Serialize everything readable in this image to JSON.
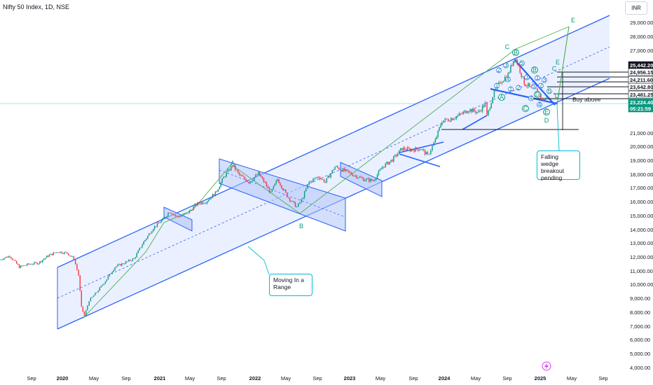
{
  "header": {
    "title": "Nifty 50 Index, 1D, NSE",
    "currency": "INR"
  },
  "chart_data": {
    "type": "line",
    "title": "Nifty 50 Index, 1D, NSE",
    "xlabel": "",
    "ylabel": "",
    "x_ticks": [
      "Sep",
      "2020",
      "May",
      "Sep",
      "2021",
      "May",
      "Sep",
      "2022",
      "May",
      "Sep",
      "2023",
      "May",
      "Sep",
      "2024",
      "May",
      "Sep",
      "2025",
      "May",
      "Sep"
    ],
    "y_ticks": [
      "29,000.00",
      "28,000.00",
      "27,000.00",
      "21,000.00",
      "20,000.00",
      "19,000.00",
      "18,000.00",
      "17,000.00",
      "16,000.00",
      "15,000.00",
      "14,000.00",
      "13,000.00",
      "12,000.00",
      "11,000.00",
      "10,000.00",
      "9,000.00",
      "8,000.00",
      "7,000.00",
      "6,000.00",
      "5,000.00",
      "4,000.00"
    ],
    "ylim": [
      4000,
      29000
    ],
    "price_labels": [
      {
        "text": "25,442.20",
        "style": "black"
      },
      {
        "text": "24,956.15",
        "style": "outline"
      },
      {
        "text": "24,211.60",
        "style": "outline"
      },
      {
        "text": "23,642.80",
        "style": "outline"
      },
      {
        "text": "23,481.25",
        "style": "outline"
      },
      {
        "text": "23,224.40",
        "style": "green"
      },
      {
        "text": "05:21:59",
        "style": "green"
      }
    ],
    "series": [
      {
        "values": [
          [
            2019.33,
            11600
          ],
          [
            2019.45,
            11900
          ],
          [
            2019.55,
            11100
          ],
          [
            2019.65,
            11300
          ],
          [
            2019.75,
            11400
          ],
          [
            2019.85,
            11900
          ],
          [
            2019.95,
            12200
          ],
          [
            2020.05,
            12100
          ],
          [
            2020.12,
            11700
          ],
          [
            2020.17,
            10500
          ],
          [
            2020.2,
            8200
          ],
          [
            2020.23,
            7600
          ],
          [
            2020.28,
            8700
          ],
          [
            2020.36,
            9300
          ],
          [
            2020.45,
            10100
          ],
          [
            2020.55,
            11100
          ],
          [
            2020.65,
            11400
          ],
          [
            2020.75,
            11700
          ],
          [
            2020.85,
            12900
          ],
          [
            2020.95,
            13900
          ],
          [
            2021.05,
            14500
          ],
          [
            2021.12,
            15100
          ],
          [
            2021.2,
            14700
          ],
          [
            2021.3,
            14900
          ],
          [
            2021.4,
            15600
          ],
          [
            2021.5,
            15800
          ],
          [
            2021.6,
            16400
          ],
          [
            2021.7,
            17700
          ],
          [
            2021.78,
            18400
          ],
          [
            2021.85,
            17700
          ],
          [
            2021.95,
            17200
          ],
          [
            2022.05,
            17800
          ],
          [
            2022.12,
            17100
          ],
          [
            2022.18,
            16400
          ],
          [
            2022.25,
            17400
          ],
          [
            2022.35,
            16200
          ],
          [
            2022.45,
            15400
          ],
          [
            2022.5,
            15900
          ],
          [
            2022.58,
            17200
          ],
          [
            2022.68,
            17600
          ],
          [
            2022.75,
            17200
          ],
          [
            2022.85,
            18300
          ],
          [
            2022.95,
            18000
          ],
          [
            2023.05,
            17700
          ],
          [
            2023.15,
            17400
          ],
          [
            2023.25,
            17300
          ],
          [
            2023.35,
            18300
          ],
          [
            2023.45,
            18800
          ],
          [
            2023.55,
            19600
          ],
          [
            2023.65,
            19500
          ],
          [
            2023.75,
            19600
          ],
          [
            2023.82,
            19100
          ],
          [
            2023.9,
            20200
          ],
          [
            2023.97,
            21600
          ],
          [
            2024.05,
            21700
          ],
          [
            2024.15,
            22000
          ],
          [
            2024.25,
            22400
          ],
          [
            2024.35,
            22200
          ],
          [
            2024.42,
            22800
          ],
          [
            2024.44,
            21900
          ],
          [
            2024.5,
            23400
          ],
          [
            2024.58,
            24400
          ],
          [
            2024.66,
            24900
          ],
          [
            2024.73,
            26200
          ],
          [
            2024.77,
            25500
          ],
          [
            2024.83,
            24300
          ],
          [
            2024.9,
            23900
          ],
          [
            2024.97,
            23700
          ],
          [
            2025.02,
            23100
          ],
          [
            2025.06,
            23200
          ]
        ]
      }
    ],
    "wave_labels": [
      "C",
      "B",
      "E",
      "A",
      "B",
      "C",
      "D",
      "E",
      "D",
      "A",
      "B",
      "C",
      "D",
      "E",
      "1",
      "2",
      "3",
      "4",
      "5",
      "1",
      "2",
      "3",
      "4",
      "5",
      "1",
      "2",
      "3",
      "4",
      "5"
    ],
    "annotations": [
      {
        "id": "wedge",
        "text": "Falling wedge breakout pending"
      },
      {
        "id": "range",
        "text": "Moving In a Range"
      },
      {
        "id": "buy",
        "text": "Buy above"
      }
    ],
    "colors": {
      "candle_up": "#089981",
      "candle_down": "#f23645",
      "channel": "#2962ff",
      "channel_fill": "#e3ebff",
      "wave": "#089981",
      "line": "#4caf50"
    }
  }
}
